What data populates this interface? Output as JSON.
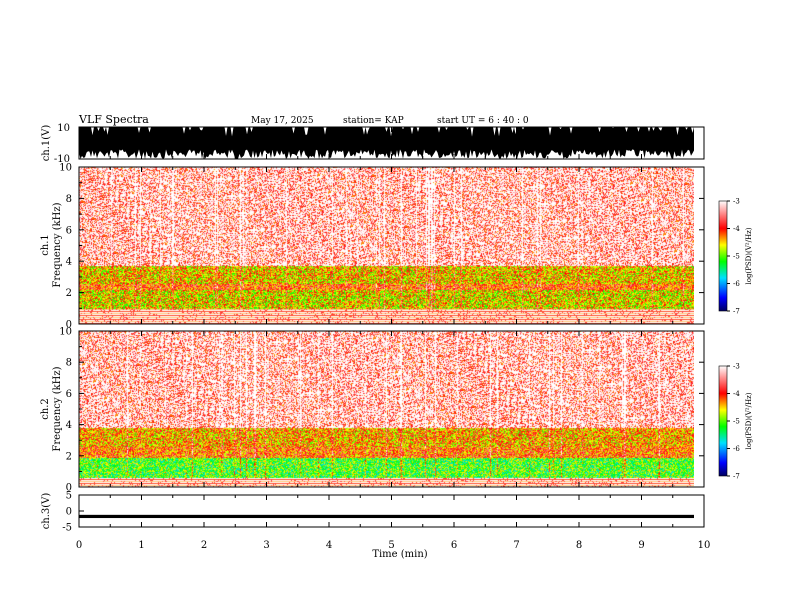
{
  "header": {
    "title": "VLF Spectra",
    "date": "May 17, 2025",
    "station": "station= KAP",
    "start_ut": "start  UT  =   6  : 40 : 0"
  },
  "chart_data": [
    {
      "type": "line",
      "panel": "ch1-waveform",
      "ylabel": "ch.1(V)",
      "ylim": [
        -10,
        10
      ],
      "yticks": [
        "10",
        "-10"
      ],
      "xlim": [
        0,
        10
      ],
      "description_values": {
        "signal_min": -10,
        "signal_max": 10,
        "signal_typical_low": -4,
        "signal_typical_high": 10
      },
      "color": "#000000"
    },
    {
      "type": "heatmap",
      "panel": "ch1-spectrogram",
      "ylabel": "ch.1\nFrequency (kHz)",
      "ylabel_line1": "ch.1",
      "ylabel_line2": "Frequency  (kHz)",
      "ylim": [
        0,
        10
      ],
      "yticks": [
        "0",
        "2",
        "4",
        "6",
        "8",
        "10"
      ],
      "xlim": [
        0,
        9.85
      ],
      "bands": [
        {
          "from": 0.0,
          "to": 1.0,
          "level": "lines"
        },
        {
          "from": 1.0,
          "to": 2.2,
          "level": -4.6
        },
        {
          "from": 2.2,
          "to": 2.6,
          "level": -4.1
        },
        {
          "from": 2.6,
          "to": 3.7,
          "level": -4.5
        },
        {
          "from": 3.7,
          "to": 10.0,
          "level": -3.7
        }
      ]
    },
    {
      "type": "heatmap",
      "panel": "ch2-spectrogram",
      "ylabel_line1": "ch.2",
      "ylabel_line2": "Frequency  (kHz)",
      "ylim": [
        0,
        10
      ],
      "yticks": [
        "0",
        "2",
        "4",
        "6",
        "8",
        "10"
      ],
      "xlim": [
        0,
        9.85
      ],
      "bands": [
        {
          "from": 0.0,
          "to": 0.6,
          "level": "lines"
        },
        {
          "from": 0.6,
          "to": 1.9,
          "level": -5.1
        },
        {
          "from": 1.9,
          "to": 2.6,
          "level": -4.2
        },
        {
          "from": 2.6,
          "to": 3.8,
          "level": -4.4
        },
        {
          "from": 3.8,
          "to": 10.0,
          "level": -3.7
        }
      ]
    },
    {
      "type": "line",
      "panel": "ch3-waveform",
      "ylabel": "ch.3(V)",
      "ylim": [
        -5,
        5
      ],
      "yticks": [
        "5",
        "0",
        "-5"
      ],
      "xlim": [
        0,
        10
      ],
      "description_values": {
        "signal_center": -1.7,
        "signal_halfwidth": 0.5
      },
      "xlabel": "Time  (min)",
      "xticks": [
        "0",
        "1",
        "2",
        "3",
        "4",
        "5",
        "6",
        "7",
        "8",
        "9",
        "10"
      ]
    }
  ],
  "colorbar": {
    "label": "log(PSD)(V²/Hz)",
    "ticks": [
      "-3",
      "-4",
      "-5",
      "-6",
      "-7"
    ],
    "range": [
      -7,
      -3
    ],
    "colors": [
      "#000066",
      "#0000ff",
      "#00ffff",
      "#00ff00",
      "#ffff00",
      "#ff0000",
      "#ffffff"
    ]
  }
}
